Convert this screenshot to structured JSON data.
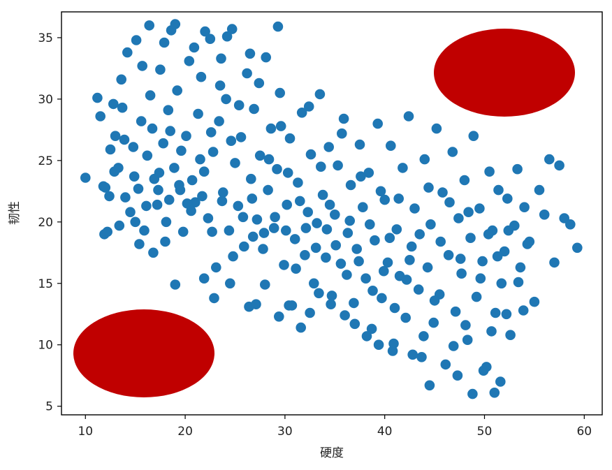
{
  "chart_data": {
    "type": "scatter",
    "xlabel": "硬度",
    "ylabel": "韧性",
    "xlim": [
      7.6,
      61.8
    ],
    "ylim": [
      4.3,
      37.1
    ],
    "x_ticks": [
      10,
      20,
      30,
      40,
      50,
      60
    ],
    "y_ticks": [
      5,
      10,
      15,
      20,
      25,
      30,
      35
    ],
    "grid": false,
    "legend": "none",
    "point_color": "#1f77b4",
    "series": [
      {
        "points": [
          [
            10.0,
            23.6
          ],
          [
            11.5,
            28.6
          ],
          [
            11.9,
            19.0
          ],
          [
            12.0,
            22.8
          ],
          [
            12.4,
            22.1
          ],
          [
            12.8,
            29.6
          ],
          [
            13.0,
            27.0
          ],
          [
            13.3,
            24.4
          ],
          [
            13.6,
            31.6
          ],
          [
            13.9,
            26.7
          ],
          [
            14.2,
            33.8
          ],
          [
            14.5,
            20.8
          ],
          [
            14.8,
            26.1
          ],
          [
            15.1,
            34.8
          ],
          [
            15.3,
            22.7
          ],
          [
            15.6,
            28.2
          ],
          [
            15.9,
            19.3
          ],
          [
            16.2,
            25.4
          ],
          [
            16.5,
            30.3
          ],
          [
            16.9,
            23.5
          ],
          [
            17.2,
            21.4
          ],
          [
            17.5,
            32.4
          ],
          [
            17.8,
            26.4
          ],
          [
            18.1,
            20.0
          ],
          [
            18.3,
            29.1
          ],
          [
            18.6,
            35.6
          ],
          [
            18.9,
            24.4
          ],
          [
            19.2,
            30.7
          ],
          [
            19.5,
            22.6
          ],
          [
            19.8,
            19.2
          ],
          [
            20.1,
            27.0
          ],
          [
            20.4,
            33.1
          ],
          [
            20.7,
            23.4
          ],
          [
            21.0,
            21.6
          ],
          [
            21.3,
            28.8
          ],
          [
            21.6,
            31.8
          ],
          [
            21.9,
            24.1
          ],
          [
            22.3,
            20.3
          ],
          [
            22.5,
            34.9
          ],
          [
            22.8,
            25.7
          ],
          [
            23.1,
            16.3
          ],
          [
            23.4,
            28.2
          ],
          [
            23.8,
            22.4
          ],
          [
            24.1,
            30.0
          ],
          [
            24.4,
            19.3
          ],
          [
            24.7,
            35.7
          ],
          [
            25.0,
            24.8
          ],
          [
            25.3,
            21.3
          ],
          [
            25.6,
            26.9
          ],
          [
            25.9,
            18.0
          ],
          [
            26.2,
            32.1
          ],
          [
            26.6,
            23.5
          ],
          [
            26.9,
            29.2
          ],
          [
            27.2,
            20.2
          ],
          [
            27.5,
            25.4
          ],
          [
            27.8,
            17.8
          ],
          [
            28.1,
            33.4
          ],
          [
            28.3,
            22.6
          ],
          [
            28.6,
            27.6
          ],
          [
            28.9,
            19.5
          ],
          [
            29.2,
            24.3
          ],
          [
            29.5,
            30.5
          ],
          [
            29.9,
            16.5
          ],
          [
            30.2,
            21.4
          ],
          [
            30.5,
            26.8
          ],
          [
            30.7,
            13.2
          ],
          [
            31.0,
            18.6
          ],
          [
            31.3,
            23.2
          ],
          [
            31.7,
            28.9
          ],
          [
            32.0,
            17.3
          ],
          [
            32.3,
            20.8
          ],
          [
            32.6,
            25.5
          ],
          [
            32.9,
            15.0
          ],
          [
            33.2,
            19.9
          ],
          [
            33.5,
            30.4
          ],
          [
            33.8,
            22.2
          ],
          [
            34.1,
            17.1
          ],
          [
            34.4,
            26.1
          ],
          [
            34.7,
            14.0
          ],
          [
            35.0,
            20.6
          ],
          [
            35.3,
            24.6
          ],
          [
            35.6,
            16.6
          ],
          [
            35.9,
            28.4
          ],
          [
            36.3,
            19.1
          ],
          [
            36.6,
            23.0
          ],
          [
            36.9,
            13.4
          ],
          [
            37.2,
            17.8
          ],
          [
            37.5,
            26.3
          ],
          [
            37.8,
            21.2
          ],
          [
            38.1,
            15.4
          ],
          [
            38.4,
            24.0
          ],
          [
            38.7,
            11.3
          ],
          [
            39.0,
            18.5
          ],
          [
            39.3,
            28.0
          ],
          [
            39.7,
            13.8
          ],
          [
            40.0,
            21.8
          ],
          [
            40.3,
            16.7
          ],
          [
            40.6,
            26.2
          ],
          [
            40.9,
            10.1
          ],
          [
            41.2,
            19.4
          ],
          [
            41.5,
            15.6
          ],
          [
            41.8,
            24.4
          ],
          [
            42.1,
            12.2
          ],
          [
            42.4,
            28.6
          ],
          [
            42.7,
            18.0
          ],
          [
            43.0,
            21.1
          ],
          [
            43.4,
            14.5
          ],
          [
            43.7,
            9.0
          ],
          [
            44.0,
            25.1
          ],
          [
            44.3,
            16.3
          ],
          [
            44.6,
            19.8
          ],
          [
            44.9,
            11.8
          ],
          [
            45.2,
            27.6
          ],
          [
            45.5,
            14.1
          ],
          [
            45.8,
            22.4
          ],
          [
            46.1,
            8.4
          ],
          [
            46.4,
            17.3
          ],
          [
            46.8,
            25.7
          ],
          [
            47.1,
            12.7
          ],
          [
            47.4,
            20.3
          ],
          [
            47.7,
            15.8
          ],
          [
            48.0,
            23.4
          ],
          [
            48.3,
            10.4
          ],
          [
            48.6,
            18.7
          ],
          [
            48.9,
            27.0
          ],
          [
            49.2,
            13.9
          ],
          [
            49.5,
            21.1
          ],
          [
            49.8,
            16.8
          ],
          [
            50.2,
            8.2
          ],
          [
            50.5,
            24.1
          ],
          [
            50.8,
            19.3
          ],
          [
            51.1,
            12.6
          ],
          [
            51.4,
            22.6
          ],
          [
            51.7,
            15.0
          ],
          [
            52.0,
            17.6
          ],
          [
            52.3,
            21.9
          ],
          [
            52.6,
            10.8
          ],
          [
            53.0,
            19.7
          ],
          [
            53.3,
            24.3
          ],
          [
            53.6,
            16.3
          ],
          [
            54.0,
            21.2
          ],
          [
            54.5,
            18.4
          ],
          [
            55.0,
            13.5
          ],
          [
            55.5,
            22.6
          ],
          [
            56.0,
            20.6
          ],
          [
            56.5,
            25.1
          ],
          [
            57.0,
            16.7
          ],
          [
            57.5,
            24.6
          ],
          [
            58.0,
            20.3
          ],
          [
            58.6,
            19.8
          ],
          [
            59.3,
            17.9
          ],
          [
            11.2,
            30.1
          ],
          [
            12.5,
            25.9
          ],
          [
            13.7,
            29.3
          ],
          [
            14.9,
            23.7
          ],
          [
            15.7,
            32.7
          ],
          [
            16.7,
            27.6
          ],
          [
            17.4,
            24.0
          ],
          [
            18.5,
            27.4
          ],
          [
            19.6,
            25.8
          ],
          [
            20.2,
            21.5
          ],
          [
            21.5,
            25.1
          ],
          [
            22.6,
            27.3
          ],
          [
            23.5,
            31.1
          ],
          [
            24.6,
            26.6
          ],
          [
            25.4,
            29.5
          ],
          [
            26.7,
            21.9
          ],
          [
            27.4,
            31.3
          ],
          [
            28.4,
            25.1
          ],
          [
            29.6,
            27.8
          ],
          [
            30.3,
            24.0
          ],
          [
            31.5,
            21.7
          ],
          [
            32.4,
            29.4
          ],
          [
            33.6,
            24.5
          ],
          [
            34.5,
            21.4
          ],
          [
            35.7,
            27.2
          ],
          [
            36.5,
            20.1
          ],
          [
            37.6,
            23.7
          ],
          [
            38.5,
            19.8
          ],
          [
            39.6,
            22.5
          ],
          [
            40.5,
            18.7
          ],
          [
            41.4,
            21.9
          ],
          [
            42.5,
            16.9
          ],
          [
            43.5,
            19.0
          ],
          [
            44.4,
            22.8
          ],
          [
            45.6,
            18.4
          ],
          [
            46.5,
            21.6
          ],
          [
            47.6,
            17.0
          ],
          [
            48.4,
            20.8
          ],
          [
            49.6,
            15.4
          ],
          [
            50.4,
            19.0
          ],
          [
            51.3,
            17.2
          ],
          [
            52.4,
            19.3
          ],
          [
            53.4,
            15.1
          ],
          [
            54.3,
            18.2
          ],
          [
            45.0,
            13.6
          ],
          [
            43.9,
            10.7
          ],
          [
            42.2,
            15.3
          ],
          [
            41.0,
            13.0
          ],
          [
            39.9,
            16.0
          ],
          [
            38.8,
            14.4
          ],
          [
            37.4,
            16.8
          ],
          [
            36.2,
            15.7
          ],
          [
            35.1,
            18.1
          ],
          [
            34.2,
            19.4
          ],
          [
            33.1,
            17.9
          ],
          [
            32.1,
            19.5
          ],
          [
            31.1,
            16.2
          ],
          [
            30.1,
            19.3
          ],
          [
            29.0,
            20.4
          ],
          [
            27.9,
            19.1
          ],
          [
            26.8,
            18.8
          ],
          [
            25.8,
            20.4
          ],
          [
            24.8,
            17.2
          ],
          [
            23.7,
            21.7
          ],
          [
            22.7,
            19.2
          ],
          [
            21.7,
            22.1
          ],
          [
            20.6,
            20.9
          ],
          [
            19.4,
            23.0
          ],
          [
            18.4,
            21.8
          ],
          [
            17.3,
            22.6
          ],
          [
            16.1,
            21.3
          ],
          [
            15.0,
            20.0
          ],
          [
            14.0,
            22.0
          ],
          [
            12.9,
            24.1
          ],
          [
            11.8,
            22.9
          ],
          [
            19.0,
            36.1
          ],
          [
            22.0,
            35.5
          ],
          [
            24.2,
            35.1
          ],
          [
            16.4,
            36.0
          ],
          [
            29.3,
            35.9
          ],
          [
            20.9,
            34.2
          ],
          [
            23.6,
            33.3
          ],
          [
            26.5,
            33.7
          ],
          [
            17.9,
            34.6
          ],
          [
            12.2,
            19.2
          ],
          [
            13.4,
            19.7
          ],
          [
            15.4,
            18.2
          ],
          [
            16.8,
            17.5
          ],
          [
            18.0,
            18.4
          ],
          [
            19.0,
            14.9
          ],
          [
            21.9,
            15.4
          ],
          [
            22.9,
            13.8
          ],
          [
            24.5,
            15.0
          ],
          [
            26.4,
            13.1
          ],
          [
            27.1,
            13.3
          ],
          [
            28.0,
            14.9
          ],
          [
            29.4,
            12.3
          ],
          [
            30.4,
            13.2
          ],
          [
            31.6,
            11.4
          ],
          [
            32.5,
            12.6
          ],
          [
            33.4,
            14.2
          ],
          [
            34.6,
            13.3
          ],
          [
            36.0,
            12.4
          ],
          [
            37.0,
            11.7
          ],
          [
            38.2,
            10.7
          ],
          [
            39.4,
            10.0
          ],
          [
            40.8,
            9.5
          ],
          [
            42.8,
            9.2
          ],
          [
            44.5,
            6.7
          ],
          [
            47.3,
            7.5
          ],
          [
            48.8,
            6.0
          ],
          [
            49.9,
            7.9
          ],
          [
            51.0,
            6.1
          ],
          [
            51.6,
            7.0
          ],
          [
            46.9,
            9.9
          ],
          [
            48.1,
            11.6
          ],
          [
            50.7,
            11.1
          ],
          [
            52.2,
            12.5
          ],
          [
            53.9,
            12.8
          ]
        ]
      }
    ]
  }
}
